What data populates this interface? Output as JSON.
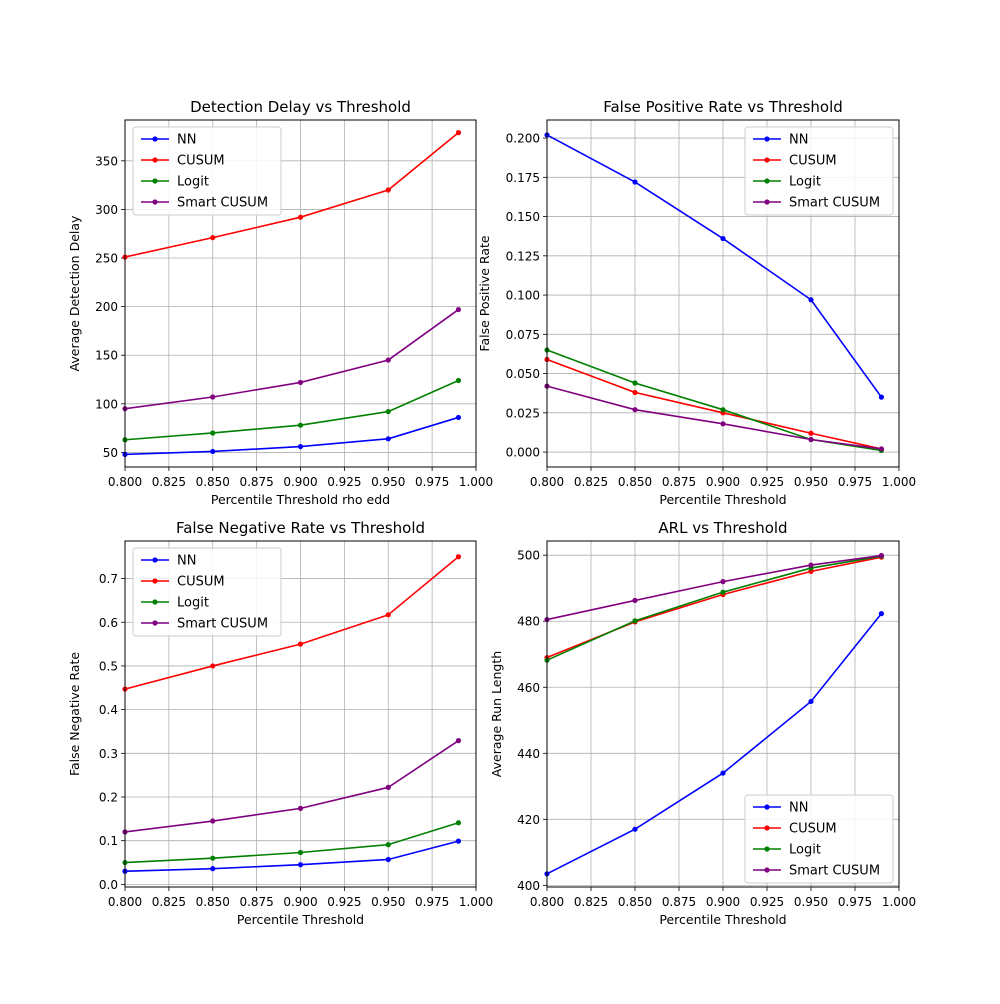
{
  "chart_data": [
    {
      "type": "line",
      "title": "Detection Delay vs Threshold",
      "xlabel": "Percentile Threshold rho edd",
      "ylabel": "Average Detection Delay",
      "x": [
        0.8,
        0.85,
        0.9,
        0.95,
        0.99
      ],
      "xlim": [
        0.8,
        1.0
      ],
      "ylim": [
        35,
        392
      ],
      "xticks": [
        0.8,
        0.825,
        0.85,
        0.875,
        0.9,
        0.925,
        0.95,
        0.975,
        1.0
      ],
      "yticks": [
        50,
        100,
        150,
        200,
        250,
        300,
        350
      ],
      "ytick_decimals": 0,
      "grid": true,
      "legend": "upper-left",
      "series": [
        {
          "name": "NN",
          "color": "#0000ff",
          "values": [
            48,
            51,
            56,
            64,
            86
          ]
        },
        {
          "name": "CUSUM",
          "color": "#ff0000",
          "values": [
            251,
            271,
            292,
            320,
            379
          ]
        },
        {
          "name": "Logit",
          "color": "#008000",
          "values": [
            63,
            70,
            78,
            92,
            124
          ]
        },
        {
          "name": "Smart CUSUM",
          "color": "#800080",
          "values": [
            95,
            107,
            122,
            145,
            197
          ]
        }
      ]
    },
    {
      "type": "line",
      "title": "False Positive Rate vs Threshold",
      "xlabel": "Percentile Threshold",
      "ylabel": "False Positive Rate",
      "x": [
        0.8,
        0.85,
        0.9,
        0.95,
        0.99
      ],
      "xlim": [
        0.8,
        1.0
      ],
      "ylim": [
        -0.0095,
        0.2115
      ],
      "xticks": [
        0.8,
        0.825,
        0.85,
        0.875,
        0.9,
        0.925,
        0.95,
        0.975,
        1.0
      ],
      "yticks": [
        0.0,
        0.025,
        0.05,
        0.075,
        0.1,
        0.125,
        0.15,
        0.175,
        0.2
      ],
      "ytick_decimals": 3,
      "grid": true,
      "legend": "upper-right",
      "series": [
        {
          "name": "NN",
          "color": "#0000ff",
          "values": [
            0.202,
            0.172,
            0.136,
            0.097,
            0.035
          ]
        },
        {
          "name": "CUSUM",
          "color": "#ff0000",
          "values": [
            0.059,
            0.038,
            0.025,
            0.012,
            0.002
          ]
        },
        {
          "name": "Logit",
          "color": "#008000",
          "values": [
            0.065,
            0.044,
            0.027,
            0.008,
            0.001
          ]
        },
        {
          "name": "Smart CUSUM",
          "color": "#800080",
          "values": [
            0.042,
            0.027,
            0.018,
            0.008,
            0.002
          ]
        }
      ]
    },
    {
      "type": "line",
      "title": "False Negative Rate vs Threshold",
      "xlabel": "Percentile Threshold",
      "ylabel": "False Negative Rate",
      "x": [
        0.8,
        0.85,
        0.9,
        0.95,
        0.99
      ],
      "xlim": [
        0.8,
        1.0
      ],
      "ylim": [
        -0.006,
        0.786
      ],
      "xticks": [
        0.8,
        0.825,
        0.85,
        0.875,
        0.9,
        0.925,
        0.95,
        0.975,
        1.0
      ],
      "yticks": [
        0.0,
        0.1,
        0.2,
        0.3,
        0.4,
        0.5,
        0.6,
        0.7
      ],
      "ytick_decimals": 1,
      "grid": true,
      "legend": "upper-left",
      "series": [
        {
          "name": "NN",
          "color": "#0000ff",
          "values": [
            0.03,
            0.036,
            0.045,
            0.057,
            0.099
          ]
        },
        {
          "name": "CUSUM",
          "color": "#ff0000",
          "values": [
            0.447,
            0.5,
            0.55,
            0.617,
            0.75
          ]
        },
        {
          "name": "Logit",
          "color": "#008000",
          "values": [
            0.05,
            0.06,
            0.073,
            0.091,
            0.141
          ]
        },
        {
          "name": "Smart CUSUM",
          "color": "#800080",
          "values": [
            0.12,
            0.145,
            0.174,
            0.222,
            0.329
          ]
        }
      ]
    },
    {
      "type": "line",
      "title": "ARL vs Threshold",
      "xlabel": "Percentile Threshold",
      "ylabel": "Average Run Length",
      "x": [
        0.8,
        0.85,
        0.9,
        0.95,
        0.99
      ],
      "xlim": [
        0.8,
        1.0
      ],
      "ylim": [
        399.5,
        504.3
      ],
      "xticks": [
        0.8,
        0.825,
        0.85,
        0.875,
        0.9,
        0.925,
        0.95,
        0.975,
        1.0
      ],
      "yticks": [
        400,
        420,
        440,
        460,
        480,
        500
      ],
      "ytick_decimals": 0,
      "grid": true,
      "legend": "lower-right",
      "series": [
        {
          "name": "NN",
          "color": "#0000ff",
          "values": [
            403.5,
            417,
            434,
            455.7,
            482.3
          ]
        },
        {
          "name": "CUSUM",
          "color": "#ff0000",
          "values": [
            469,
            479.8,
            488.1,
            495.1,
            499.4
          ]
        },
        {
          "name": "Logit",
          "color": "#008000",
          "values": [
            468.2,
            480.1,
            488.8,
            496.1,
            499.7
          ]
        },
        {
          "name": "Smart CUSUM",
          "color": "#800080",
          "values": [
            480.5,
            486.3,
            492,
            497,
            499.9
          ]
        }
      ]
    }
  ]
}
